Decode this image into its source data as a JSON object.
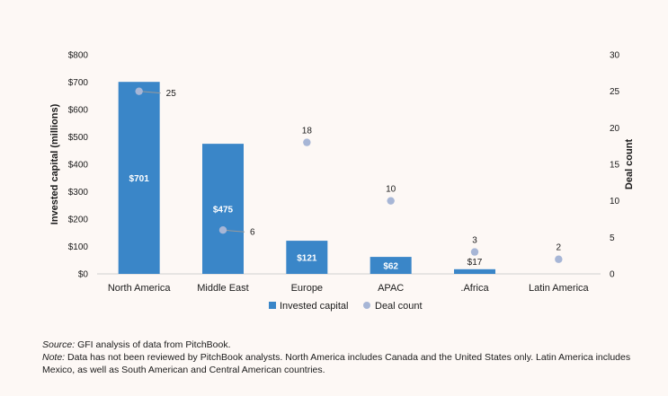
{
  "chart_data": {
    "type": "bar",
    "categories": [
      "North America",
      "Middle East",
      "Europe",
      "APAC",
      "Africa",
      "Latin America"
    ],
    "category_labels": [
      "North America",
      "Middle East",
      "Europe",
      "APAC",
      ".Africa",
      "Latin America"
    ],
    "series": [
      {
        "name": "Invested capital",
        "type": "bar",
        "axis": "left",
        "values": [
          701,
          475,
          121,
          62,
          17,
          null
        ],
        "labels": [
          "$701",
          "$475",
          "$121",
          "$62",
          "$17",
          ""
        ],
        "color": "#3a86c8"
      },
      {
        "name": "Deal count",
        "type": "scatter",
        "axis": "right",
        "values": [
          25,
          6,
          18,
          10,
          3,
          2
        ],
        "labels": [
          "25",
          "6",
          "18",
          "10",
          "3",
          "2"
        ],
        "color": "#a7b6d6"
      }
    ],
    "ylabel": "Invested capital (millions)",
    "y2label": "Deal count",
    "ylim": [
      0,
      800
    ],
    "y2lim": [
      0,
      30
    ],
    "yticks": [
      "$0",
      "$100",
      "$200",
      "$300",
      "$400",
      "$500",
      "$600",
      "$700",
      "$800"
    ],
    "y2ticks": [
      "0",
      "5",
      "10",
      "15",
      "20",
      "25",
      "30"
    ],
    "grid": false,
    "legend": "bottom-center"
  },
  "notes": {
    "source_label": "Source:",
    "source_text": " GFI analysis of data from PitchBook.",
    "note_label": "Note:",
    "note_text": " Data has not been reviewed by PitchBook analysts. North America includes Canada and the United States only. Latin America includes Mexico, as well as South American and Central American countries."
  }
}
